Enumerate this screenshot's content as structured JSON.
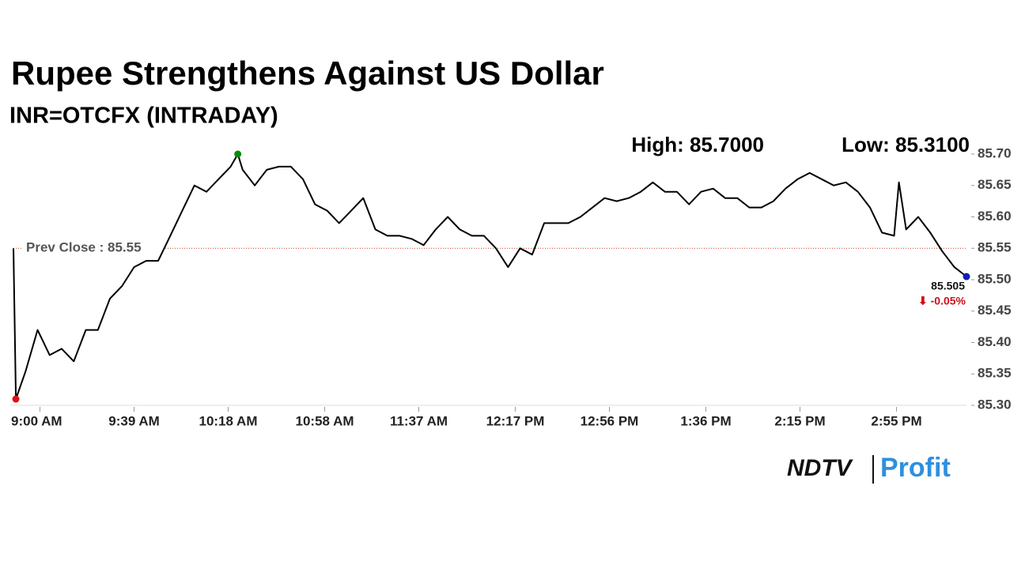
{
  "chart_data": {
    "type": "line",
    "title": "Rupee Strengthens Against US Dollar",
    "subtitle": "INR=OTCFX (INTRADAY)",
    "color": "#000000",
    "x": [
      "8:49 AM",
      "8:50 AM",
      "8:54 AM",
      "8:59 AM",
      "9:04 AM",
      "9:09 AM",
      "9:14 AM",
      "9:19 AM",
      "9:24 AM",
      "9:29 AM",
      "9:34 AM",
      "9:39 AM",
      "9:44 AM",
      "9:49 AM",
      "9:54 AM",
      "9:59 AM",
      "10:04 AM",
      "10:09 AM",
      "10:14 AM",
      "10:19 AM",
      "10:22 AM",
      "10:24 AM",
      "10:29 AM",
      "10:34 AM",
      "10:39 AM",
      "10:44 AM",
      "10:49 AM",
      "10:54 AM",
      "10:59 AM",
      "11:04 AM",
      "11:09 AM",
      "11:14 AM",
      "11:19 AM",
      "11:24 AM",
      "11:29 AM",
      "11:34 AM",
      "11:39 AM",
      "11:44 AM",
      "11:49 AM",
      "11:54 AM",
      "11:59 AM",
      "12:04 PM",
      "12:09 PM",
      "12:14 PM",
      "12:19 PM",
      "12:24 PM",
      "12:29 PM",
      "12:34 PM",
      "12:39 PM",
      "12:44 PM",
      "12:49 PM",
      "12:54 PM",
      "12:59 PM",
      "1:04 PM",
      "1:09 PM",
      "1:14 PM",
      "1:19 PM",
      "1:24 PM",
      "1:29 PM",
      "1:34 PM",
      "1:39 PM",
      "1:44 PM",
      "1:49 PM",
      "1:54 PM",
      "1:59 PM",
      "2:04 PM",
      "2:09 PM",
      "2:14 PM",
      "2:19 PM",
      "2:24 PM",
      "2:29 PM",
      "2:34 PM",
      "2:39 PM",
      "2:44 PM",
      "2:49 PM",
      "2:54 PM",
      "2:56 PM",
      "2:59 PM",
      "3:04 PM",
      "3:09 PM",
      "3:14 PM",
      "3:19 PM",
      "3:24 PM"
    ],
    "values": [
      85.55,
      85.31,
      85.354,
      85.42,
      85.38,
      85.39,
      85.37,
      85.42,
      85.42,
      85.47,
      85.49,
      85.52,
      85.53,
      85.53,
      85.57,
      85.61,
      85.65,
      85.64,
      85.66,
      85.68,
      85.7,
      85.675,
      85.65,
      85.675,
      85.68,
      85.68,
      85.66,
      85.62,
      85.61,
      85.59,
      85.61,
      85.63,
      85.58,
      85.57,
      85.57,
      85.565,
      85.555,
      85.58,
      85.6,
      85.58,
      85.57,
      85.57,
      85.55,
      85.52,
      85.55,
      85.54,
      85.59,
      85.59,
      85.59,
      85.6,
      85.615,
      85.63,
      85.625,
      85.63,
      85.64,
      85.655,
      85.64,
      85.64,
      85.62,
      85.64,
      85.645,
      85.63,
      85.63,
      85.615,
      85.615,
      85.625,
      85.645,
      85.66,
      85.67,
      85.66,
      85.65,
      85.655,
      85.64,
      85.615,
      85.575,
      85.57,
      85.655,
      85.58,
      85.6,
      85.575,
      85.545,
      85.52,
      85.505
    ],
    "xlim": [
      "8:49 AM",
      "3:24 PM"
    ],
    "xticks": [
      "9:00 AM",
      "9:39 AM",
      "10:18 AM",
      "10:58 AM",
      "11:37 AM",
      "12:17 PM",
      "12:56 PM",
      "1:36 PM",
      "2:15 PM",
      "2:55 PM"
    ],
    "ylim": [
      85.3,
      85.7
    ],
    "yticks": [
      {
        "value": 85.3,
        "label": "85.30"
      },
      85.35,
      {
        "value": 85.4,
        "label": "85.40"
      },
      85.45,
      {
        "value": 85.5,
        "label": "85.50"
      },
      85.55,
      {
        "value": 85.6,
        "label": "85.60"
      },
      85.65,
      {
        "value": 85.7,
        "label": "85.70"
      }
    ],
    "high": {
      "label": "High: 85.7000",
      "value": 85.7,
      "color": "#0a8a0a"
    },
    "low": {
      "label": "Low: 85.3100",
      "value": 85.31,
      "color": "#e01010"
    },
    "prev_close": {
      "label": "Prev Close : 85.55",
      "value": 85.55,
      "color": "#c0392b"
    },
    "last": {
      "value": 85.505,
      "change": "⬇ -0.05%",
      "color": "#1020b0",
      "change_color": "#d0101a"
    }
  },
  "logo": {
    "brand": "NDTV",
    "product": "Profit"
  }
}
